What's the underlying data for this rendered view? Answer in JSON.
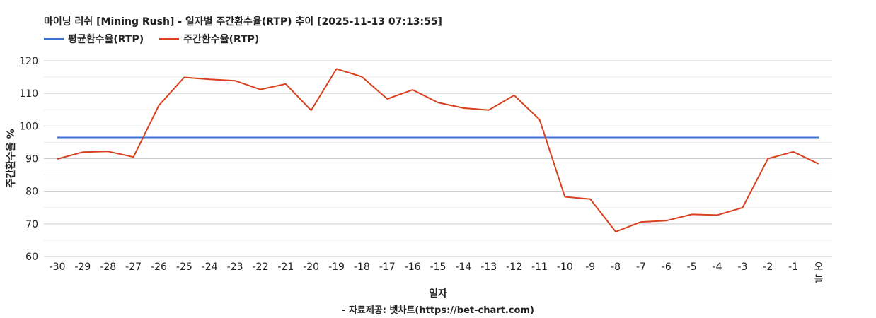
{
  "chart_data": {
    "type": "line",
    "title": "마이닝 러쉬 [Mining Rush] - 일자별 주간환수율(RTP) 추이 [2025-11-13 07:13:55]",
    "xlabel": "일자",
    "ylabel": "주간환수율 %",
    "ylim": [
      60,
      120
    ],
    "yticks": [
      60,
      70,
      80,
      90,
      100,
      110,
      120
    ],
    "grid": true,
    "legend_position": "top-left",
    "categories": [
      "-30",
      "-29",
      "-28",
      "-27",
      "-26",
      "-25",
      "-24",
      "-23",
      "-22",
      "-21",
      "-20",
      "-19",
      "-18",
      "-17",
      "-16",
      "-15",
      "-14",
      "-13",
      "-12",
      "-11",
      "-10",
      "-9",
      "-8",
      "-7",
      "-6",
      "-5",
      "-4",
      "-3",
      "-2",
      "-1",
      "오늘"
    ],
    "series": [
      {
        "name": "평균환수율(RTP)",
        "color": "#3b6fd1",
        "values": [
          96.5,
          96.5,
          96.5,
          96.5,
          96.5,
          96.5,
          96.5,
          96.5,
          96.5,
          96.5,
          96.5,
          96.5,
          96.5,
          96.5,
          96.5,
          96.5,
          96.5,
          96.5,
          96.5,
          96.5,
          96.5,
          96.5,
          96.5,
          96.5,
          96.5,
          96.5,
          96.5,
          96.5,
          96.5,
          96.5,
          96.5
        ]
      },
      {
        "name": "주간환수율(RTP)",
        "color": "#d9401e",
        "values": [
          89.9,
          92.0,
          92.2,
          90.5,
          106.3,
          114.9,
          114.3,
          113.9,
          111.2,
          112.9,
          104.8,
          117.5,
          115.1,
          108.3,
          111.1,
          107.2,
          105.5,
          104.9,
          109.4,
          102.0,
          78.3,
          77.6,
          67.6,
          70.6,
          71.0,
          72.9,
          72.7,
          75.0,
          90.0,
          92.1,
          88.4
        ]
      }
    ]
  },
  "source_credit": "- 자료제공: 벳차트(https://bet-chart.com)"
}
